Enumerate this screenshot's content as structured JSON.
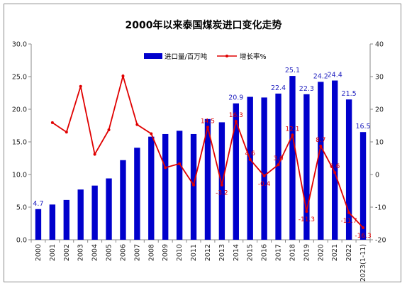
{
  "chart_data": {
    "type": "bar",
    "title": "2000年以来泰国煤炭进口变化走势",
    "categories": [
      "2000",
      "2001",
      "2002",
      "2003",
      "2004",
      "2005",
      "2006",
      "2007",
      "2008",
      "2009",
      "2010",
      "2011",
      "2012",
      "2013",
      "2014",
      "2015",
      "2016",
      "2017",
      "2018",
      "2019",
      "2020",
      "2021",
      "2022",
      "2023(1-11)"
    ],
    "series": [
      {
        "name": "进口量/百万吨",
        "kind": "bar",
        "axis": "left",
        "color": "#0000cc",
        "values": [
          4.7,
          5.4,
          6.1,
          7.7,
          8.3,
          9.4,
          12.2,
          14.1,
          15.8,
          16.2,
          16.7,
          16.2,
          18.5,
          18.0,
          20.9,
          21.9,
          21.8,
          22.4,
          25.1,
          22.3,
          24.2,
          24.4,
          21.5,
          16.5
        ],
        "labels": [
          "4.7",
          "",
          "",
          "",
          "",
          "",
          "",
          "",
          "",
          "",
          "",
          "",
          "",
          "",
          "20.9",
          "",
          "",
          "22.4",
          "25.1",
          "22.3",
          "24.2",
          "24.4",
          "21.5",
          "16.5"
        ]
      },
      {
        "name": "增长率%",
        "kind": "line",
        "axis": "right",
        "color": "#e00000",
        "values": [
          null,
          15.9,
          13.0,
          27.0,
          6.2,
          13.7,
          30.2,
          15.3,
          12.5,
          2.1,
          3.3,
          -3.2,
          14.5,
          -3.2,
          16.3,
          4.6,
          -0.4,
          3.0,
          12.1,
          -11.3,
          8.7,
          0.6,
          -11.7,
          -16.3
        ],
        "labels": [
          "",
          "",
          "",
          "",
          "",
          "",
          "",
          "",
          "",
          "",
          "",
          "",
          "14.5",
          "-3.2",
          "16.3",
          "4.6",
          "-0.4",
          "3.0",
          "12.1",
          "-11.3",
          "8.7",
          "0.6",
          "-11.7",
          "-16.3"
        ]
      }
    ],
    "y_left": {
      "min": 0,
      "max": 30,
      "ticks": [
        "0.0",
        "5.0",
        "10.0",
        "15.0",
        "20.0",
        "25.0",
        "30.0"
      ]
    },
    "y_right": {
      "min": -20,
      "max": 40,
      "ticks": [
        "-20",
        "-10",
        "0",
        "10",
        "20",
        "30",
        "40"
      ]
    },
    "legend_position": "top-center",
    "grid": false
  }
}
